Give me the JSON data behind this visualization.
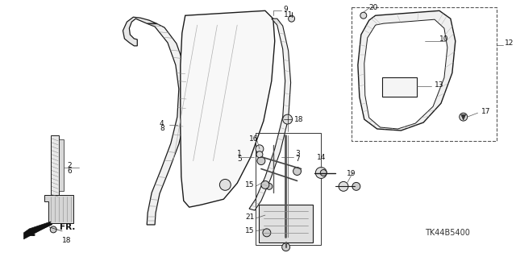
{
  "bg_color": "#ffffff",
  "diagram_code": "TK44B5400",
  "fig_width": 6.4,
  "fig_height": 3.19,
  "dpi": 100,
  "line_color": "#1a1a1a",
  "label_color": "#111111",
  "font_size": 6.5
}
